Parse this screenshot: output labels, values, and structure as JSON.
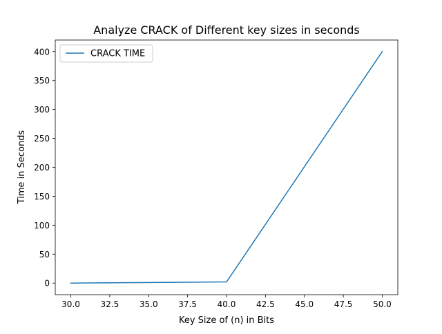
{
  "chart_data": {
    "type": "line",
    "title": "Analyze CRACK of Different key sizes in seconds",
    "xlabel": "Key Size of (n) in Bits",
    "ylabel": "Time in Seconds",
    "xlim": [
      29.0,
      51.0
    ],
    "ylim": [
      -20,
      420
    ],
    "xticks": [
      30.0,
      32.5,
      35.0,
      37.5,
      40.0,
      42.5,
      45.0,
      47.5,
      50.0
    ],
    "xtick_labels": [
      "30.0",
      "32.5",
      "35.0",
      "37.5",
      "40.0",
      "42.5",
      "45.0",
      "47.5",
      "50.0"
    ],
    "yticks": [
      0,
      50,
      100,
      150,
      200,
      250,
      300,
      350,
      400
    ],
    "ytick_labels": [
      "0",
      "50",
      "100",
      "150",
      "200",
      "250",
      "300",
      "350",
      "400"
    ],
    "grid": false,
    "legend_position": "top-left",
    "series": [
      {
        "name": "CRACK TIME",
        "color": "#1f77b4",
        "x": [
          30,
          40,
          50
        ],
        "y": [
          0,
          2,
          400
        ]
      }
    ]
  }
}
